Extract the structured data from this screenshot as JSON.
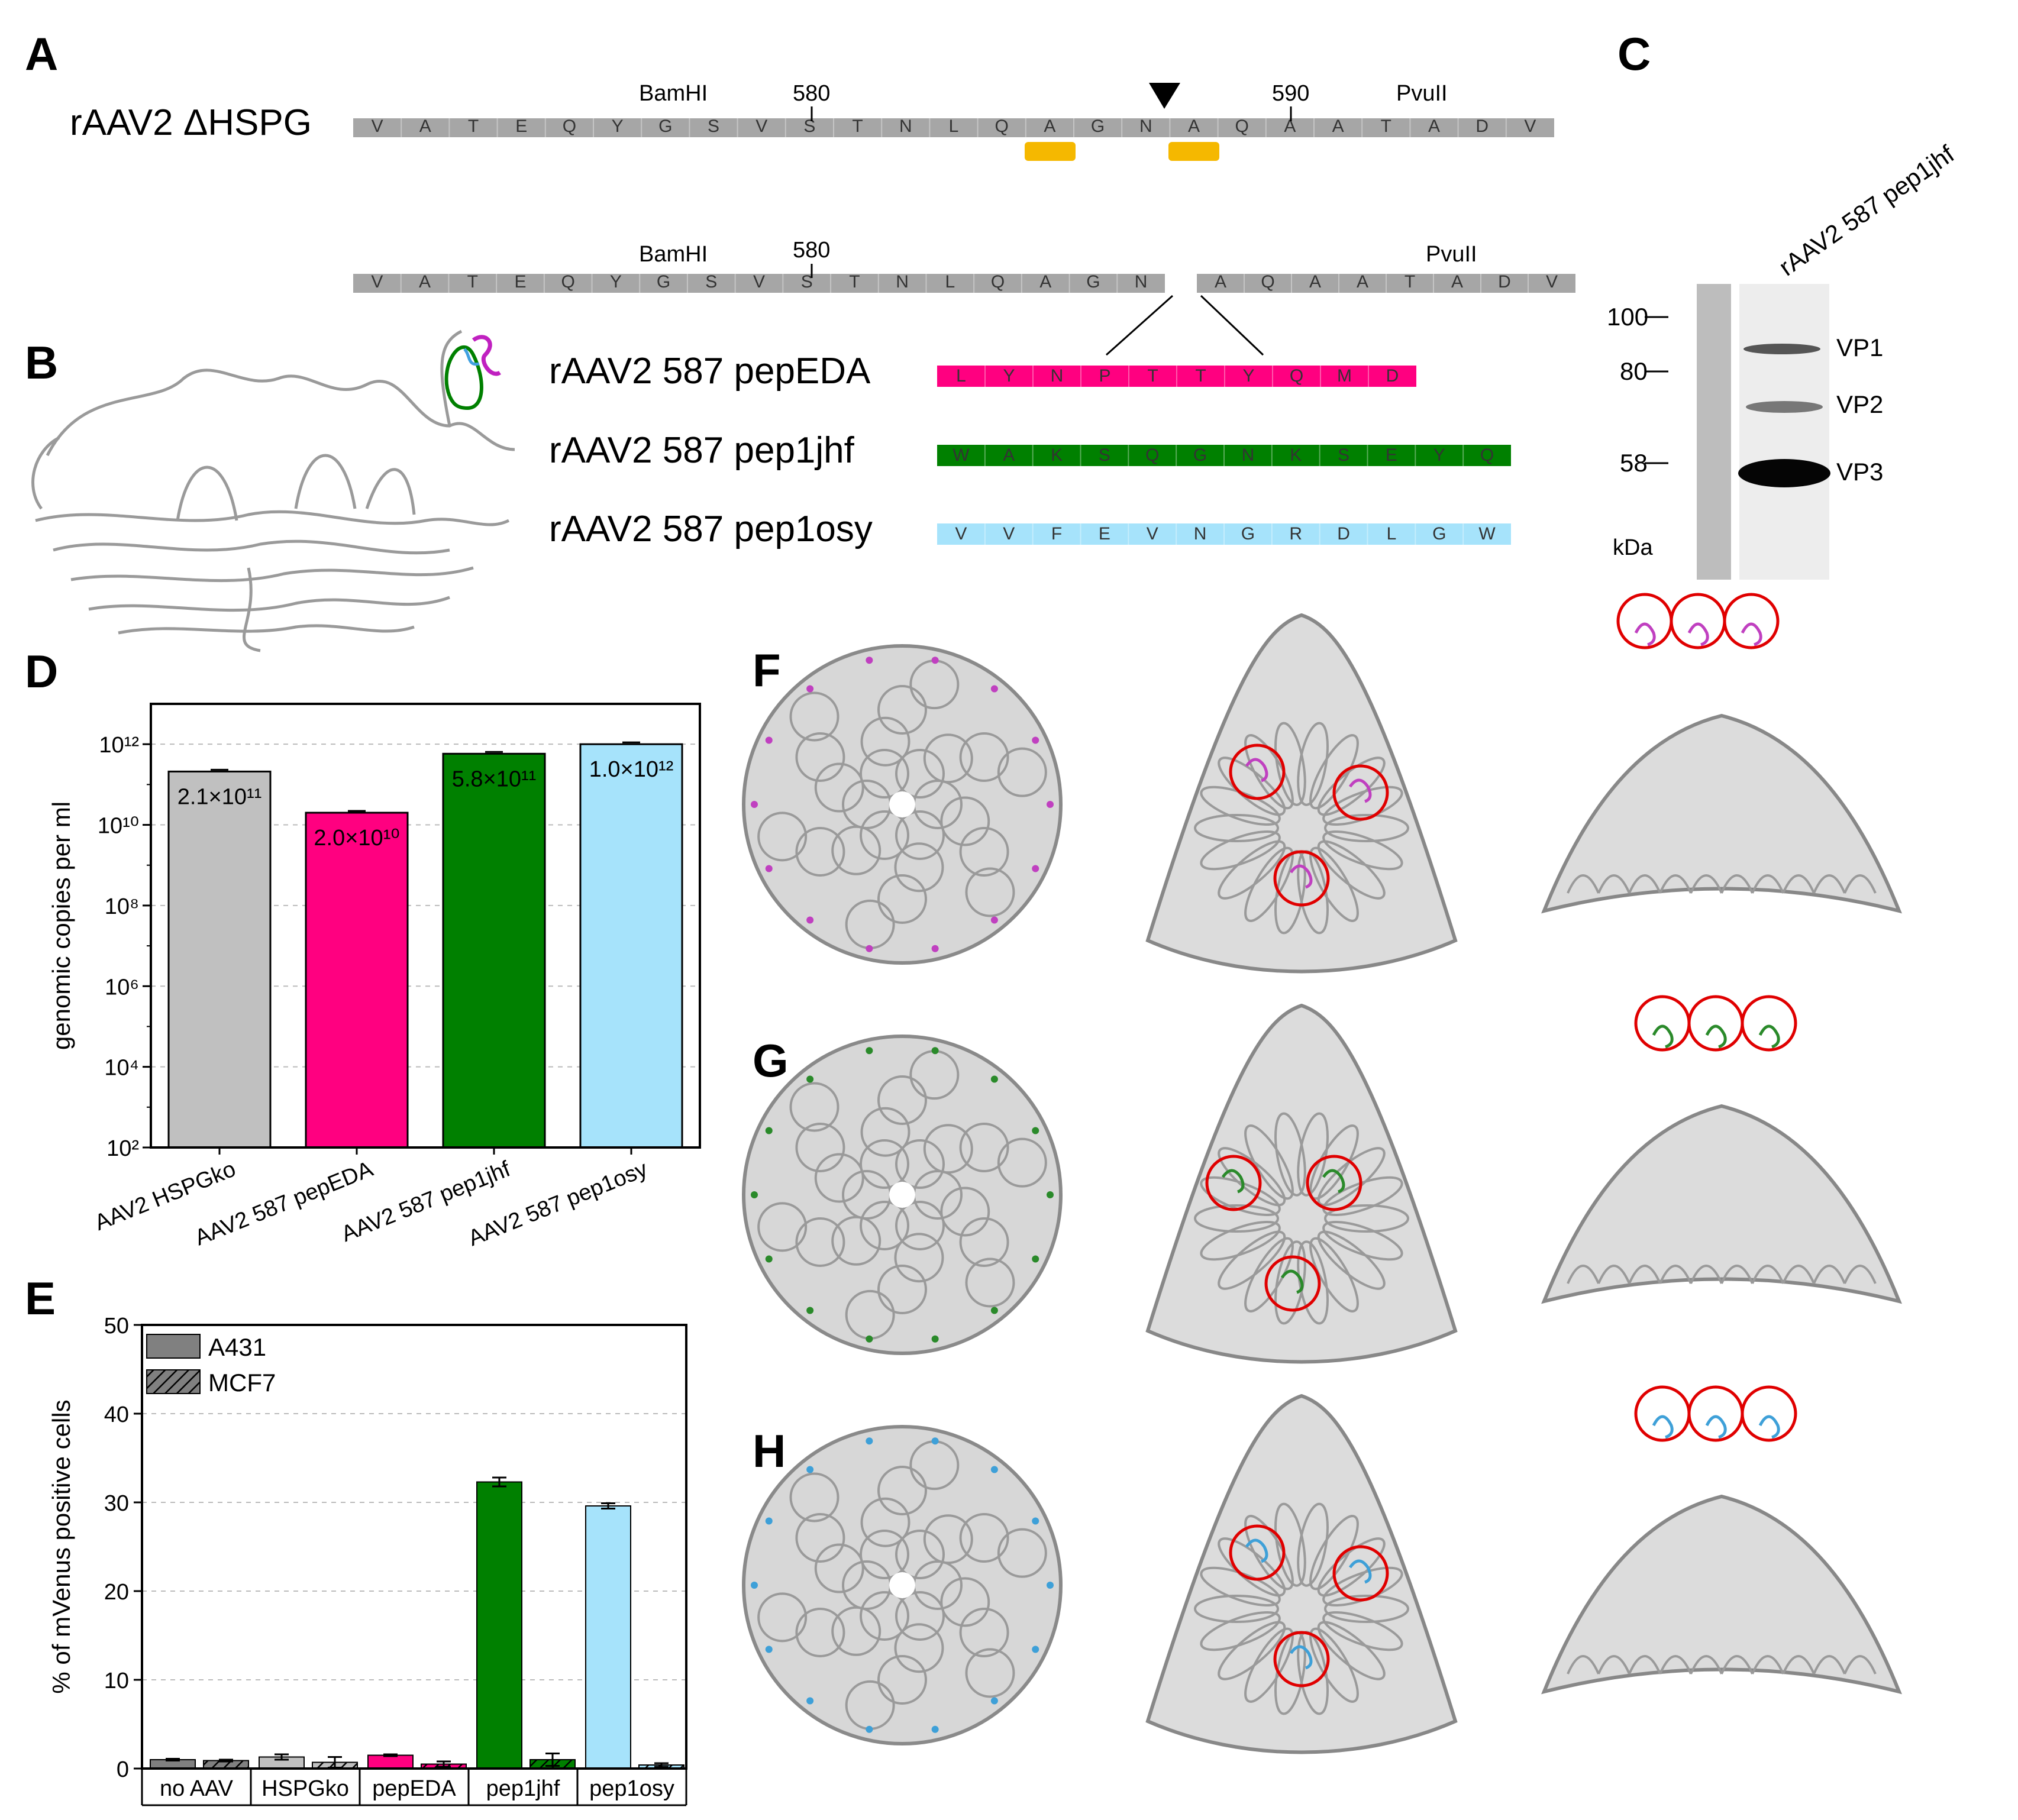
{
  "panels": {
    "A": "A",
    "B": "B",
    "C": "C",
    "D": "D",
    "E": "E",
    "F": "F",
    "G": "G",
    "H": "H"
  },
  "panelA": {
    "construct_label": "rAAV2 ΔHSPG",
    "row1_residues": [
      "V",
      "A",
      "T",
      "E",
      "Q",
      "Y",
      "G",
      "S",
      "V",
      "S",
      "T",
      "N",
      "L",
      "Q",
      "A",
      "G",
      "N",
      "A",
      "Q",
      "A",
      "A",
      "T",
      "A",
      "D",
      "V"
    ],
    "row2_left_residues": [
      "V",
      "A",
      "T",
      "E",
      "Q",
      "Y",
      "G",
      "S",
      "V",
      "S",
      "T",
      "N",
      "L",
      "Q",
      "A",
      "G",
      "N"
    ],
    "row2_right_residues": [
      "A",
      "Q",
      "A",
      "A",
      "T",
      "A",
      "D",
      "V"
    ],
    "bamhi": "BamHI",
    "pvuii": "PvuII",
    "pos580": "580",
    "pos590": "590",
    "marker_color": "#f5b800",
    "bar_color": "#a6a6a6"
  },
  "panelB": {
    "peptides": [
      {
        "label": "rAAV2 587 pepEDA",
        "color": "#ff0080",
        "residues": [
          "L",
          "Y",
          "N",
          "P",
          "T",
          "T",
          "Y",
          "Q",
          "M",
          "D"
        ]
      },
      {
        "label": "rAAV2 587 pep1jhf",
        "color": "#008000",
        "residues": [
          "W",
          "A",
          "K",
          "S",
          "Q",
          "G",
          "N",
          "K",
          "S",
          "E",
          "Y",
          "Q"
        ]
      },
      {
        "label": "rAAV2 587 pep1osy",
        "color": "#a6e3fb",
        "residues": [
          "V",
          "V",
          "F",
          "E",
          "V",
          "N",
          "G",
          "R",
          "D",
          "L",
          "G",
          "W"
        ]
      }
    ]
  },
  "panelC": {
    "lane_label": "rAAV2 587 pep1jhf",
    "markers": [
      "100",
      "80",
      "58"
    ],
    "unit": "kDa",
    "bands": [
      "VP1",
      "VP2",
      "VP3"
    ]
  },
  "chart_data": [
    {
      "type": "bar",
      "panel": "D",
      "categories": [
        "AAV2 HSPGko",
        "AAV2 587 pepEDA",
        "AAV2 587 pep1jhf",
        "AAV2 587 pep1osy"
      ],
      "values": [
        210000000000.0,
        20000000000.0,
        580000000000.0,
        1000000000000.0
      ],
      "value_labels": [
        "2.1×10¹¹",
        "2.0×10¹⁰",
        "5.8×10¹¹",
        "1.0×10¹²"
      ],
      "colors": [
        "#c0c0c0",
        "#ff0080",
        "#008000",
        "#a6e3fb"
      ],
      "ylabel": "genomic copies per ml",
      "yscale": "log",
      "ylim": [
        100,
        10000000000000.0
      ],
      "ytick_labels": [
        "10¹²",
        "10¹⁰",
        "10⁸",
        "10⁶",
        "10⁴",
        "10²"
      ],
      "ytick_exponents": [
        12,
        10,
        8,
        6,
        4,
        2
      ],
      "grid": true
    },
    {
      "type": "bar",
      "panel": "E",
      "categories": [
        "no AAV",
        "HSPGko",
        "pepEDA",
        "pep1jhf",
        "pep1osy"
      ],
      "series": [
        {
          "name": "A431",
          "values": [
            1.0,
            1.3,
            1.5,
            32.3,
            29.6
          ]
        },
        {
          "name": "MCF7",
          "values": [
            0.9,
            0.7,
            0.5,
            1.0,
            0.4
          ]
        }
      ],
      "errors": {
        "A431": [
          0.1,
          0.3,
          0.1,
          0.5,
          0.3
        ],
        "MCF7": [
          0.1,
          0.6,
          0.3,
          0.7,
          0.2
        ]
      },
      "colors": [
        "#808080",
        "#c0c0c0",
        "#ff0080",
        "#008000",
        "#a6e3fb"
      ],
      "ylabel": "% of mVenus positive cells",
      "ylim": [
        0,
        50
      ],
      "yticks": [
        0,
        10,
        20,
        30,
        40,
        50
      ],
      "grid": true,
      "legend": "top-left"
    }
  ]
}
